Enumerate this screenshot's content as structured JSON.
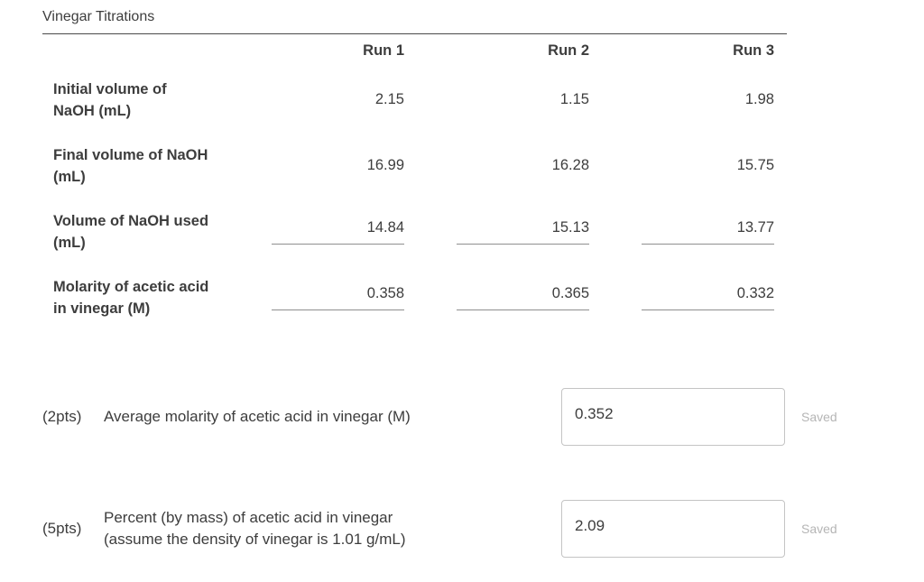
{
  "title": "Vinegar Titrations",
  "table": {
    "columns": [
      "Run 1",
      "Run 2",
      "Run 3"
    ],
    "rows": [
      {
        "label": "Initial volume of NaOH (mL)",
        "values": [
          "2.15",
          "1.15",
          "1.98"
        ]
      },
      {
        "label": "Final volume of NaOH (mL)",
        "values": [
          "16.99",
          "16.28",
          "15.75"
        ]
      },
      {
        "label": "Volume of NaOH used (mL)",
        "values": [
          "14.84",
          "15.13",
          "13.77"
        ]
      },
      {
        "label": "Molarity of acetic acid in vinegar (M)",
        "values": [
          "0.358",
          "0.365",
          "0.332"
        ]
      }
    ]
  },
  "questions": [
    {
      "points": "(2pts)",
      "text": "Average molarity of acetic acid in vinegar (M)",
      "value": "0.352",
      "status": "Saved"
    },
    {
      "points": "(5pts)",
      "text": "Percent (by mass) of acetic acid in vinegar (assume the density of vinegar is 1.01 g/mL)",
      "value": "2.09",
      "status": "Saved"
    }
  ]
}
